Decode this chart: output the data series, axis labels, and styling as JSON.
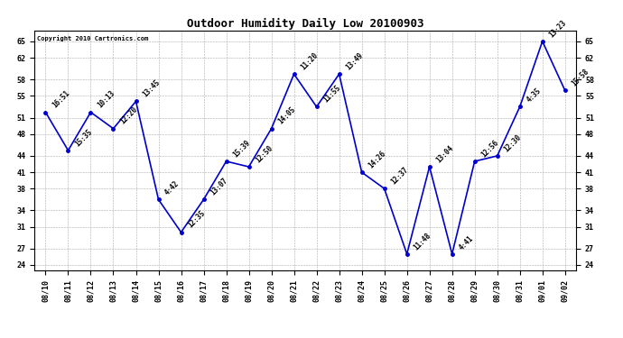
{
  "title": "Outdoor Humidity Daily Low 20100903",
  "copyright": "Copyright 2010 Cartronics.com",
  "x_labels": [
    "08/10",
    "08/11",
    "08/12",
    "08/13",
    "08/14",
    "08/15",
    "08/16",
    "08/17",
    "08/18",
    "08/19",
    "08/20",
    "08/21",
    "08/22",
    "08/23",
    "08/24",
    "08/25",
    "08/26",
    "08/27",
    "08/28",
    "08/29",
    "08/30",
    "08/31",
    "09/01",
    "09/02"
  ],
  "y_values": [
    52,
    45,
    52,
    49,
    54,
    36,
    30,
    36,
    43,
    42,
    49,
    59,
    53,
    59,
    41,
    38,
    26,
    42,
    26,
    43,
    44,
    53,
    65,
    56
  ],
  "time_labels": [
    "16:51",
    "15:35",
    "10:13",
    "12:20",
    "13:45",
    "4:42",
    "12:35",
    "13:07",
    "15:39",
    "12:50",
    "14:05",
    "11:20",
    "11:55",
    "13:49",
    "14:26",
    "12:37",
    "11:48",
    "13:04",
    "4:41",
    "12:56",
    "12:30",
    "4:35",
    "13:23",
    "15:58"
  ],
  "y_ticks": [
    24,
    27,
    31,
    34,
    38,
    41,
    44,
    48,
    51,
    55,
    58,
    62,
    65
  ],
  "y_min": 23,
  "y_max": 67,
  "line_color": "#0000cc",
  "marker_color": "#0000cc",
  "bg_color": "#ffffff",
  "grid_color": "#aaaaaa",
  "title_fontsize": 9,
  "tick_fontsize": 6,
  "label_fontsize": 5.5,
  "copyright_fontsize": 5
}
